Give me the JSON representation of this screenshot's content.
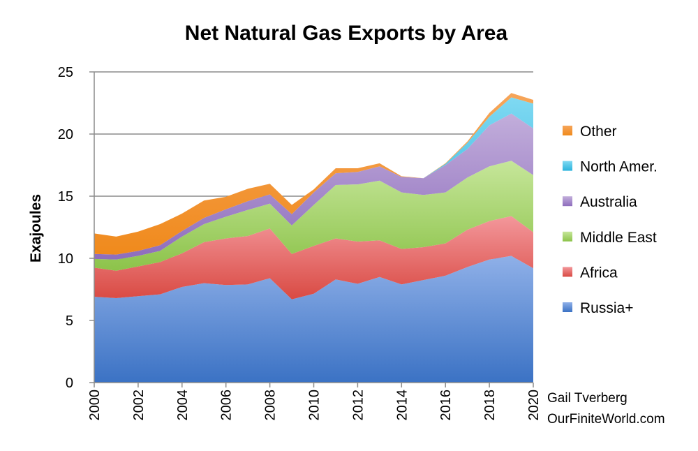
{
  "chart_data": {
    "type": "area",
    "title": "Net Natural Gas Exports by Area",
    "xlabel": "",
    "ylabel": "Exajoules",
    "ylim": [
      0,
      25
    ],
    "yticks": [
      "0",
      "5",
      "10",
      "15",
      "20",
      "25"
    ],
    "x": [
      2000,
      2001,
      2002,
      2003,
      2004,
      2005,
      2006,
      2007,
      2008,
      2009,
      2010,
      2011,
      2012,
      2013,
      2014,
      2015,
      2016,
      2017,
      2018,
      2019,
      2020
    ],
    "xticks": [
      "2000",
      "2002",
      "2004",
      "2006",
      "2008",
      "2010",
      "2012",
      "2014",
      "2016",
      "2018",
      "2020"
    ],
    "stacked": true,
    "grid": "horizontal",
    "legend_position": "right",
    "series": [
      {
        "name": "Russia+",
        "color": "#8fb0e8",
        "values": [
          6.9,
          6.8,
          6.95,
          7.1,
          7.7,
          8.0,
          7.85,
          7.9,
          8.4,
          6.7,
          7.15,
          8.3,
          7.95,
          8.5,
          7.9,
          8.25,
          8.6,
          9.3,
          9.9,
          10.2,
          9.2
        ]
      },
      {
        "name": "Africa",
        "color": "#f3979b",
        "values": [
          2.35,
          2.2,
          2.4,
          2.6,
          2.7,
          3.3,
          3.75,
          3.9,
          4.0,
          3.65,
          3.85,
          3.3,
          3.4,
          2.95,
          2.85,
          2.65,
          2.6,
          3.0,
          3.1,
          3.2,
          2.9
        ]
      },
      {
        "name": "Middle East",
        "color": "#c6e69a",
        "values": [
          0.7,
          0.9,
          0.85,
          0.9,
          1.35,
          1.45,
          1.75,
          2.1,
          2.0,
          2.3,
          3.3,
          4.3,
          4.6,
          4.8,
          4.55,
          4.2,
          4.1,
          4.2,
          4.4,
          4.45,
          4.6
        ]
      },
      {
        "name": "Australia",
        "color": "#c2aedb",
        "values": [
          0.4,
          0.4,
          0.4,
          0.45,
          0.45,
          0.5,
          0.6,
          0.7,
          0.75,
          0.9,
          1.0,
          0.95,
          1.0,
          1.15,
          1.25,
          1.35,
          2.2,
          2.3,
          3.3,
          3.8,
          3.75
        ]
      },
      {
        "name": "North Amer.",
        "color": "#7fd9f2",
        "values": [
          0,
          0,
          0,
          0,
          0,
          0,
          0,
          0,
          0,
          0,
          0,
          0,
          0,
          0,
          0,
          0,
          0.1,
          0.5,
          0.7,
          1.3,
          2.0
        ]
      },
      {
        "name": "Other",
        "color": "#f6a55a",
        "values": [
          1.65,
          1.45,
          1.55,
          1.7,
          1.4,
          1.4,
          1.0,
          1.0,
          0.85,
          0.75,
          0.25,
          0.4,
          0.3,
          0.25,
          0.05,
          0.0,
          0.05,
          0.1,
          0.3,
          0.35,
          0.3
        ]
      }
    ],
    "legend_order": [
      "Other",
      "North Amer.",
      "Australia",
      "Middle East",
      "Africa",
      "Russia+"
    ]
  },
  "credit": {
    "author": "Gail Tverberg",
    "site": "OurFiniteWorld.com"
  },
  "colors": {
    "russia_dark": "#3b72c4",
    "africa_dark": "#d94a43",
    "middle_east_dark": "#8cc34a",
    "australia_dark": "#8e6dbd",
    "north_amer_dark": "#2ab3dd",
    "other_dark": "#f08a1c",
    "grid": "#8c8c8c",
    "axis": "#8c8c8c"
  }
}
